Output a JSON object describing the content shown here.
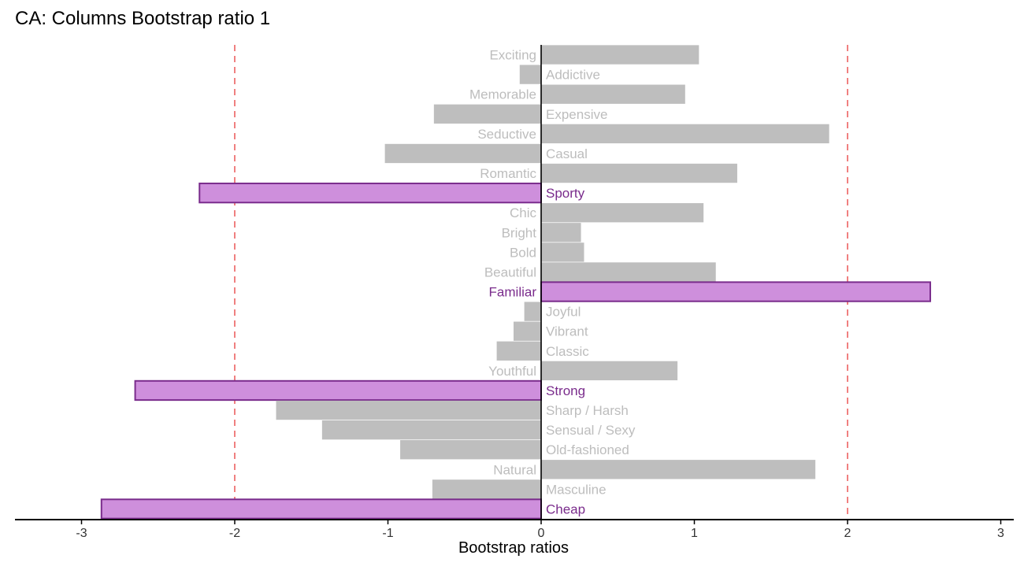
{
  "chart_data": {
    "type": "bar",
    "orientation": "horizontal",
    "title": "CA: Columns Bootstrap ratio 1",
    "xlabel": "Bootstrap ratios",
    "ylabel": "",
    "xlim": [
      -3.4,
      3.1
    ],
    "x_ticks": [
      -3,
      -2,
      -1,
      0,
      1,
      2,
      3
    ],
    "x_tick_labels": [
      "-3",
      "-2",
      "-1",
      "0",
      "1",
      "2",
      "3"
    ],
    "thresholds": [
      -2,
      2
    ],
    "threshold_color": "#f08080",
    "colors": {
      "significant_fill": "#ce8fdc",
      "significant_stroke": "#7a2c8c",
      "significant_label": "#7a2c8c",
      "nonsignificant_fill": "#bebebe",
      "nonsignificant_label": "#bdbdbd"
    },
    "bars": [
      {
        "label": "Exciting",
        "value": 1.03,
        "significant": false
      },
      {
        "label": "Addictive",
        "value": -0.14,
        "significant": false
      },
      {
        "label": "Memorable",
        "value": 0.94,
        "significant": false
      },
      {
        "label": "Expensive",
        "value": -0.7,
        "significant": false
      },
      {
        "label": "Seductive",
        "value": 1.88,
        "significant": false
      },
      {
        "label": "Casual",
        "value": -1.02,
        "significant": false
      },
      {
        "label": "Romantic",
        "value": 1.28,
        "significant": false
      },
      {
        "label": "Sporty",
        "value": -2.23,
        "significant": true
      },
      {
        "label": "Chic",
        "value": 1.06,
        "significant": false
      },
      {
        "label": "Bright",
        "value": 0.26,
        "significant": false
      },
      {
        "label": "Bold",
        "value": 0.28,
        "significant": false
      },
      {
        "label": "Beautiful",
        "value": 1.14,
        "significant": false
      },
      {
        "label": "Familiar",
        "value": 2.54,
        "significant": true
      },
      {
        "label": "Joyful",
        "value": -0.11,
        "significant": false
      },
      {
        "label": "Vibrant",
        "value": -0.18,
        "significant": false
      },
      {
        "label": "Classic",
        "value": -0.29,
        "significant": false
      },
      {
        "label": "Youthful",
        "value": 0.89,
        "significant": false
      },
      {
        "label": "Strong",
        "value": -2.65,
        "significant": true
      },
      {
        "label": "Sharp / Harsh",
        "value": -1.73,
        "significant": false
      },
      {
        "label": "Sensual / Sexy",
        "value": -1.43,
        "significant": false
      },
      {
        "label": "Old-fashioned",
        "value": -0.92,
        "significant": false
      },
      {
        "label": "Natural",
        "value": 1.79,
        "significant": false
      },
      {
        "label": "Masculine",
        "value": -0.71,
        "significant": false
      },
      {
        "label": "Cheap",
        "value": -2.87,
        "significant": true
      }
    ]
  }
}
